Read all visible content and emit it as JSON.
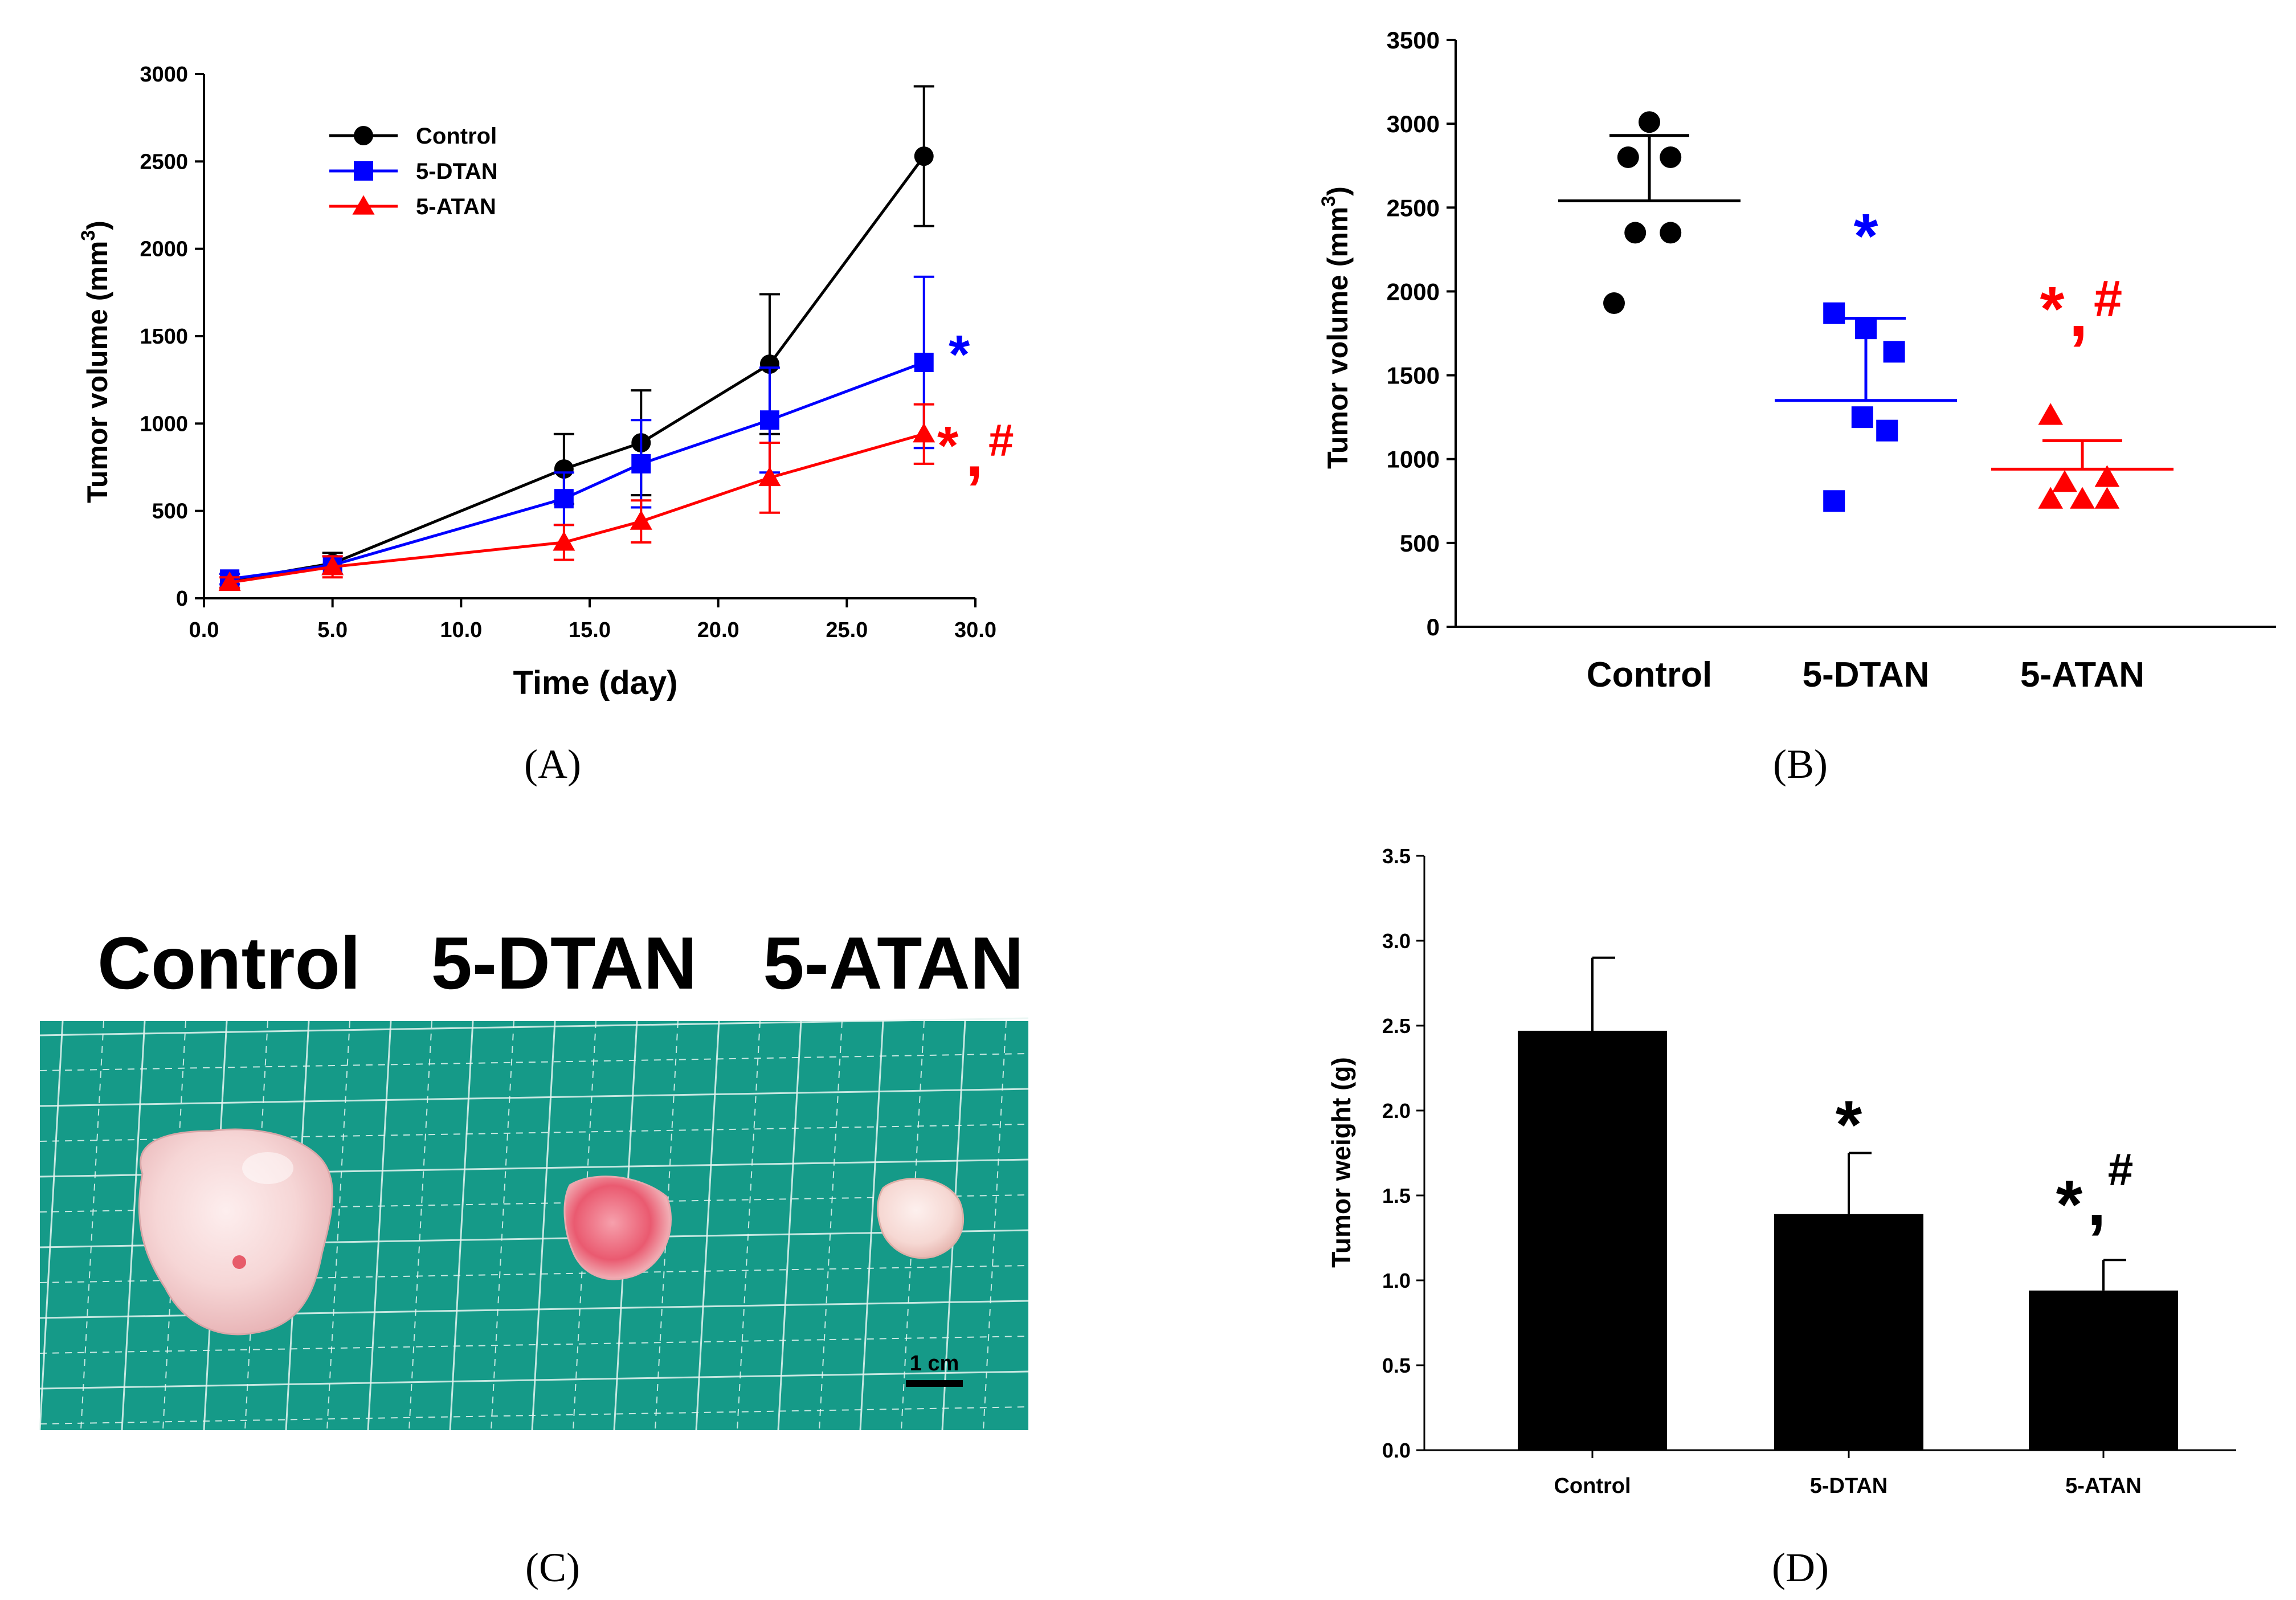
{
  "chart_data": [
    {
      "panel": "A",
      "type": "line",
      "xlabel": "Time (day)",
      "ylabel_main": "Tumor volume (mm",
      "ylabel_sup": "3",
      "ylabel_close": ")",
      "xlim": [
        0,
        30
      ],
      "ylim": [
        0,
        3000
      ],
      "x_ticks": [
        0,
        5,
        10,
        15,
        20,
        25,
        30
      ],
      "x_tick_labels": [
        "0.0",
        "5.0",
        "10.0",
        "15.0",
        "20.0",
        "25.0",
        "30.0"
      ],
      "y_ticks": [
        0,
        500,
        1000,
        1500,
        2000,
        2500,
        3000
      ],
      "y_tick_labels": [
        "0",
        "500",
        "1000",
        "1500",
        "2000",
        "2500",
        "3000"
      ],
      "legend": "top-left",
      "x": [
        1,
        5,
        14,
        17,
        22,
        28
      ],
      "series": [
        {
          "name": "Control",
          "color": "#000000",
          "marker": "circle",
          "values": [
            100,
            200,
            740,
            890,
            1340,
            2530
          ],
          "errors": [
            40,
            60,
            200,
            300,
            400,
            400
          ]
        },
        {
          "name": "5-DTAN",
          "color": "#0000ff",
          "marker": "square",
          "values": [
            110,
            190,
            570,
            770,
            1020,
            1350
          ],
          "errors": [
            30,
            50,
            150,
            250,
            300,
            490
          ]
        },
        {
          "name": "5-ATAN",
          "color": "#ff0000",
          "marker": "triangle",
          "values": [
            90,
            180,
            320,
            440,
            690,
            940
          ],
          "errors": [
            30,
            60,
            100,
            120,
            200,
            170
          ]
        }
      ],
      "annotations": [
        {
          "text": "*",
          "color": "#0000ff",
          "series": "5-DTAN"
        },
        {
          "text": "*",
          "color": "#ff0000",
          "series": "5-ATAN"
        },
        {
          "text": "#",
          "color": "#ff0000",
          "series": "5-ATAN"
        },
        {
          "text": ",",
          "color": "#ff0000",
          "series": "5-ATAN"
        }
      ],
      "panel_label": "(A)"
    },
    {
      "panel": "B",
      "type": "scatter",
      "ylabel_main": "Tumor volume (mm",
      "ylabel_sup": "3",
      "ylabel_close": ")",
      "categories": [
        "Control",
        "5-DTAN",
        "5-ATAN"
      ],
      "ylim": [
        0,
        3500
      ],
      "y_ticks": [
        0,
        500,
        1000,
        1500,
        2000,
        2500,
        3000,
        3500
      ],
      "y_tick_labels": [
        "0",
        "500",
        "1000",
        "1500",
        "2000",
        "2500",
        "3000",
        "3500"
      ],
      "series": [
        {
          "name": "Control",
          "color": "#000000",
          "marker": "circle",
          "points": [
            {
              "jitter": 0,
              "value": 3010
            },
            {
              "jitter": -0.6,
              "value": 2800
            },
            {
              "jitter": 0.6,
              "value": 2800
            },
            {
              "jitter": -0.4,
              "value": 2350
            },
            {
              "jitter": 0.6,
              "value": 2350
            },
            {
              "jitter": -1.0,
              "value": 1930
            }
          ],
          "mean": 2540,
          "error": 390
        },
        {
          "name": "5-DTAN",
          "color": "#0000ff",
          "marker": "square",
          "points": [
            {
              "jitter": -0.9,
              "value": 1870
            },
            {
              "jitter": 0,
              "value": 1780
            },
            {
              "jitter": 0.8,
              "value": 1640
            },
            {
              "jitter": -0.1,
              "value": 1250
            },
            {
              "jitter": 0.6,
              "value": 1170
            },
            {
              "jitter": -0.9,
              "value": 750
            }
          ],
          "mean": 1350,
          "error": 490
        },
        {
          "name": "5-ATAN",
          "color": "#ff0000",
          "marker": "triangle",
          "points": [
            {
              "jitter": -0.9,
              "value": 1260
            },
            {
              "jitter": -0.5,
              "value": 860
            },
            {
              "jitter": 0.7,
              "value": 890
            },
            {
              "jitter": -0.9,
              "value": 760
            },
            {
              "jitter": 0,
              "value": 760
            },
            {
              "jitter": 0.7,
              "value": 760
            }
          ],
          "mean": 940,
          "error": 170
        }
      ],
      "annotations": [
        {
          "text": "*",
          "color": "#0000ff",
          "category": "5-DTAN"
        },
        {
          "text": "*",
          "color": "#ff0000",
          "category": "5-ATAN"
        },
        {
          "text": "#",
          "color": "#ff0000",
          "category": "5-ATAN"
        },
        {
          "text": ",",
          "color": "#ff0000",
          "category": "5-ATAN"
        }
      ],
      "panel_label": "(B)"
    },
    {
      "panel": "D",
      "type": "bar",
      "ylabel": "Tumor weight (g)",
      "categories": [
        "Control",
        "5-DTAN",
        "5-ATAN"
      ],
      "values": [
        2.47,
        1.39,
        0.94
      ],
      "errors": [
        0.43,
        0.36,
        0.18
      ],
      "ylim": [
        0,
        3.5
      ],
      "y_ticks": [
        0,
        0.5,
        1,
        1.5,
        2,
        2.5,
        3,
        3.5
      ],
      "y_tick_labels": [
        "0.0",
        "0.5",
        "1.0",
        "1.5",
        "2.0",
        "2.5",
        "3.0",
        "3.5"
      ],
      "bar_color": "#000000",
      "annotations": [
        {
          "text": "*",
          "color": "#000000",
          "category": "5-DTAN"
        },
        {
          "text": "*",
          "color": "#000000",
          "category": "5-ATAN"
        },
        {
          "text": "#",
          "color": "#000000",
          "category": "5-ATAN"
        },
        {
          "text": ",",
          "color": "#000000",
          "category": "5-ATAN"
        }
      ],
      "panel_label": "(D)"
    }
  ],
  "photo": {
    "panel": "C",
    "titles": [
      "Control",
      "5-DTAN",
      "5-ATAN"
    ],
    "scale_bar_label": "1 cm",
    "mat_color": "#159a88",
    "panel_label": "(C)"
  }
}
